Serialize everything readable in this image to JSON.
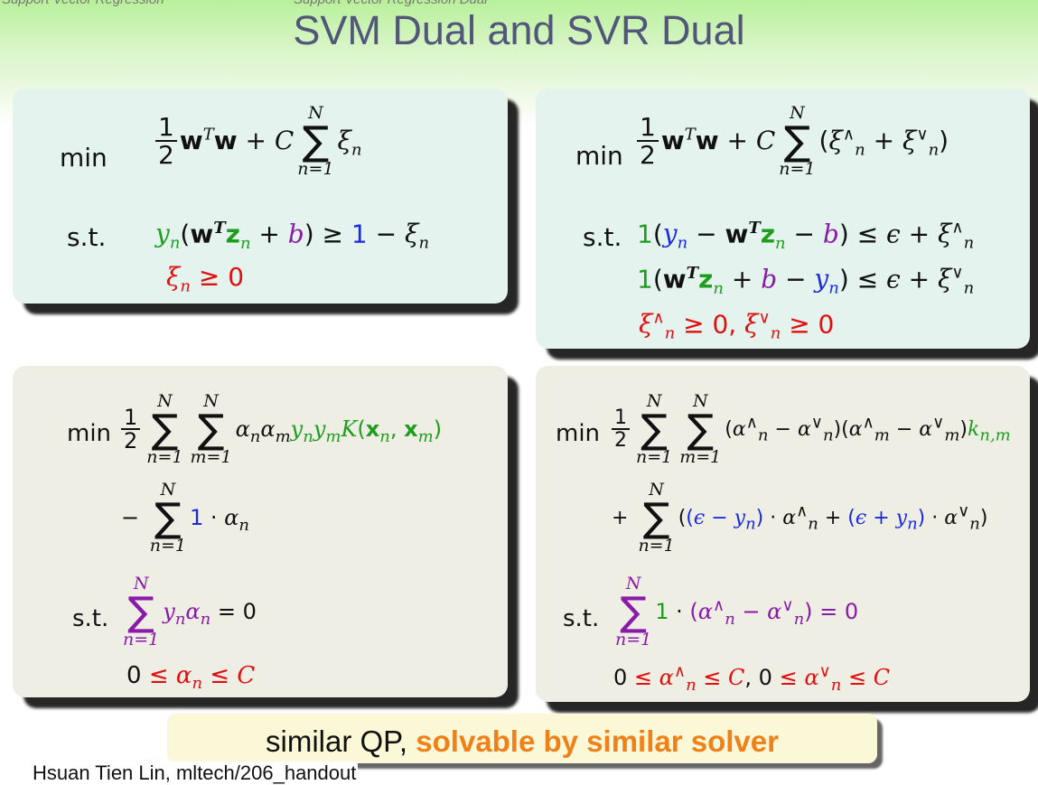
{
  "header": {
    "crumb_left": "Support Vector Regression",
    "crumb_right": "Support Vector Regression Dual",
    "title": "SVM Dual and SVR Dual"
  },
  "svm_primal": {
    "min_label": "min",
    "st_label": "s.t.",
    "objective": "1/2 w^T w + C Σ_{n=1}^{N} ξ_n",
    "constraint_1": "y_n(w^T z_n + b) ≥ 1 − ξ_n",
    "constraint_2": "ξ_n ≥ 0"
  },
  "svr_primal": {
    "min_label": "min",
    "st_label": "s.t.",
    "objective": "1/2 w^T w + C Σ_{n=1}^{N} (ξ_n^∧ + ξ_n^∨)",
    "constraint_1": "1(y_n − w^T z_n − b) ≤ ε + ξ_n^∧",
    "constraint_2": "1(w^T z_n + b − y_n) ≤ ε + ξ_n^∨",
    "constraint_3": "ξ_n^∧ ≥ 0, ξ_n^∨ ≥ 0"
  },
  "svm_dual": {
    "min_label": "min",
    "st_label": "s.t.",
    "objective_1": "1/2 Σ_{n=1}^{N} Σ_{m=1}^{N} α_n α_m y_n y_m K(x_n, x_m)",
    "objective_2": "− Σ_{n=1}^{N} 1 · α_n",
    "constraint_1": "Σ_{n=1}^{N} y_n α_n = 0",
    "constraint_2": "0 ≤ α_n ≤ C"
  },
  "svr_dual": {
    "min_label": "min",
    "st_label": "s.t.",
    "objective_1": "1/2 Σ_{n=1}^{N} Σ_{m=1}^{N} (α_n^∧ − α_n^∨)(α_m^∧ − α_m^∨) k_{n,m}",
    "objective_2": "+ Σ_{n=1}^{N} ((ε − y_n) · α_n^∧ + (ε + y_n) · α_n^∨)",
    "constraint_1": "Σ_{n=1}^{N} 1 · (α_n^∧ − α_n^∨) = 0",
    "constraint_2": "0 ≤ α_n^∧ ≤ C, 0 ≤ α_n^∨ ≤ C"
  },
  "note": {
    "plain": "similar QP,",
    "highlight": "solvable by similar solver"
  },
  "footer": "Hsuan Tien Lin, mltech/206_handout",
  "colors": {
    "title": "#52577a",
    "green": "#1e9e1e",
    "red": "#e01010",
    "purple": "#8a1aa8",
    "blue": "#1a2ae0",
    "orange": "#f08018",
    "primal_box": "#e5f3ee",
    "dual_box": "#efeee4"
  }
}
